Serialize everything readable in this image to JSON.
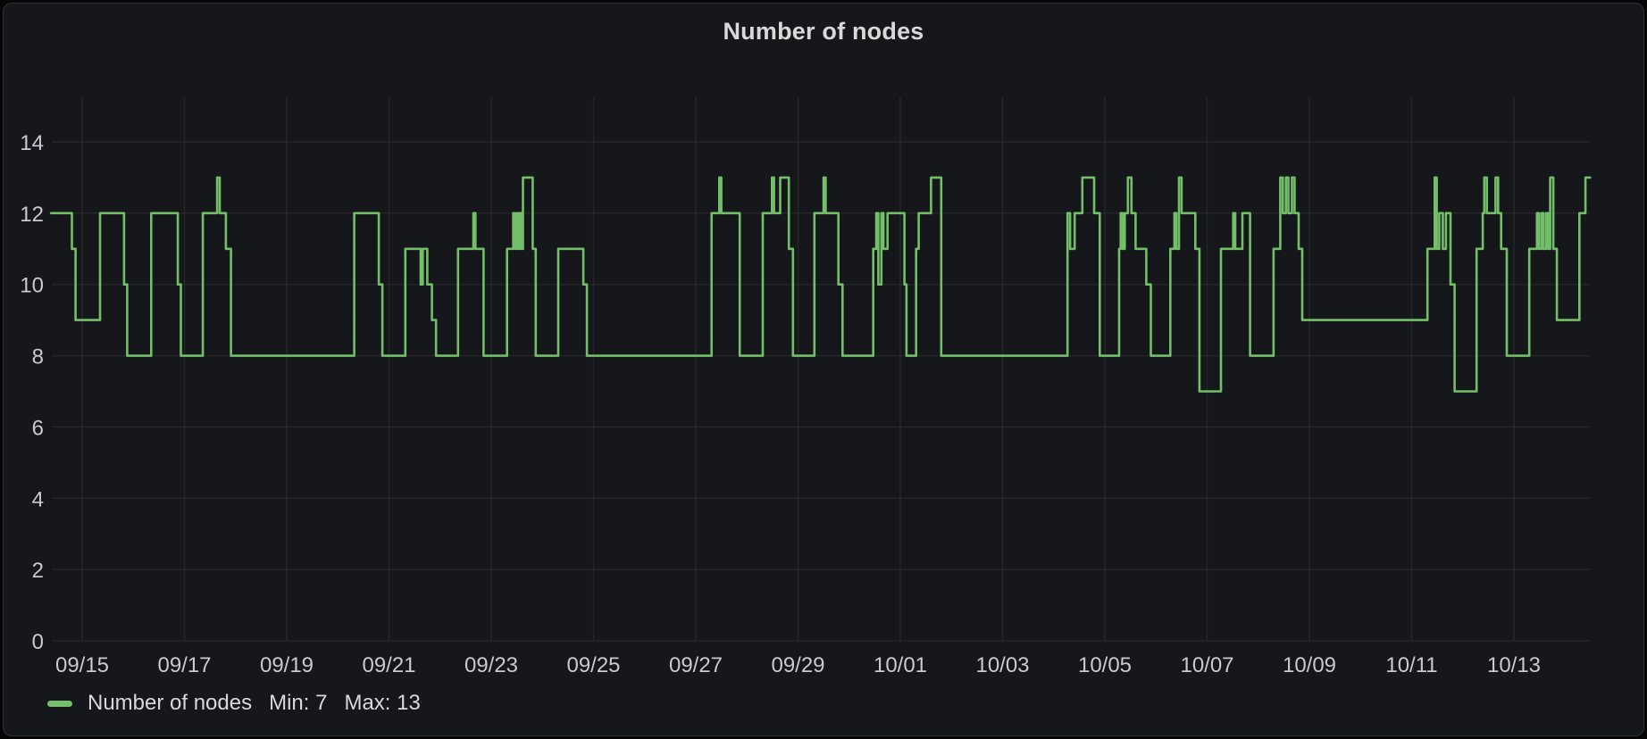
{
  "panel": {
    "title": "Number of nodes"
  },
  "legend": {
    "series_label": "Number of nodes",
    "min_label": "Min: 7",
    "max_label": "Max: 13",
    "marker_color": "#73BF69"
  },
  "colors": {
    "panel_background": "#16171B",
    "page_background": "#060607",
    "panel_border": "#2C2F36",
    "line_green": "#73BF69",
    "grid": "rgba(204,204,220,0.08)",
    "title_text": "#D8D9DA",
    "tick_text": "#C7CAD1"
  },
  "chart_data": {
    "type": "line",
    "interpolation": "step-after",
    "title": "Number of nodes",
    "xlabel": "",
    "ylabel": "",
    "grid": true,
    "legend_position": "bottom-left",
    "x_axis": {
      "epoch": "days since 09/15 00:00",
      "tick_days": [
        0,
        2,
        4,
        6,
        8,
        10,
        12,
        14,
        16,
        18,
        20,
        22,
        24,
        26,
        28
      ],
      "tick_labels": [
        "09/15",
        "09/17",
        "09/19",
        "09/21",
        "09/23",
        "09/25",
        "09/27",
        "09/29",
        "10/01",
        "10/03",
        "10/05",
        "10/07",
        "10/09",
        "10/11",
        "10/13"
      ],
      "range_days": [
        -0.61,
        29.49
      ]
    },
    "y_axis": {
      "ticks": [
        0,
        2,
        4,
        6,
        8,
        10,
        12,
        14
      ],
      "tick_labels": [
        "0",
        "2",
        "4",
        "6",
        "8",
        "10",
        "12",
        "14"
      ],
      "range": [
        0,
        15.25
      ]
    },
    "series": [
      {
        "name": "Number of nodes",
        "color": "#73BF69",
        "min": 7,
        "max": 13,
        "points": [
          [
            -0.61,
            12
          ],
          [
            -0.2,
            11
          ],
          [
            -0.13,
            9
          ],
          [
            0.35,
            12
          ],
          [
            0.82,
            10
          ],
          [
            0.88,
            8
          ],
          [
            1.35,
            12
          ],
          [
            1.87,
            10
          ],
          [
            1.93,
            8
          ],
          [
            2.36,
            12
          ],
          [
            2.64,
            13
          ],
          [
            2.69,
            12
          ],
          [
            2.81,
            11
          ],
          [
            2.91,
            8
          ],
          [
            5.32,
            12
          ],
          [
            5.8,
            10
          ],
          [
            5.87,
            8
          ],
          [
            6.32,
            11
          ],
          [
            6.62,
            10
          ],
          [
            6.66,
            11
          ],
          [
            6.75,
            10
          ],
          [
            6.84,
            9
          ],
          [
            6.92,
            8
          ],
          [
            7.35,
            11
          ],
          [
            7.65,
            12
          ],
          [
            7.69,
            11
          ],
          [
            7.85,
            8
          ],
          [
            8.31,
            11
          ],
          [
            8.43,
            12
          ],
          [
            8.46,
            11
          ],
          [
            8.5,
            12
          ],
          [
            8.53,
            11
          ],
          [
            8.56,
            12
          ],
          [
            8.6,
            11
          ],
          [
            8.62,
            13
          ],
          [
            8.81,
            11
          ],
          [
            8.87,
            8
          ],
          [
            9.31,
            11
          ],
          [
            9.8,
            10
          ],
          [
            9.87,
            8
          ],
          [
            12.31,
            12
          ],
          [
            12.46,
            13
          ],
          [
            12.5,
            12
          ],
          [
            12.86,
            8
          ],
          [
            13.31,
            12
          ],
          [
            13.49,
            13
          ],
          [
            13.53,
            12
          ],
          [
            13.65,
            13
          ],
          [
            13.82,
            11
          ],
          [
            13.9,
            8
          ],
          [
            14.32,
            12
          ],
          [
            14.5,
            13
          ],
          [
            14.54,
            12
          ],
          [
            14.79,
            10
          ],
          [
            14.87,
            8
          ],
          [
            15.47,
            11
          ],
          [
            15.53,
            12
          ],
          [
            15.57,
            10
          ],
          [
            15.63,
            12
          ],
          [
            15.67,
            11
          ],
          [
            15.75,
            12
          ],
          [
            16.08,
            10
          ],
          [
            16.12,
            8
          ],
          [
            16.31,
            11
          ],
          [
            16.36,
            12
          ],
          [
            16.6,
            13
          ],
          [
            16.8,
            8
          ],
          [
            19.27,
            12
          ],
          [
            19.32,
            11
          ],
          [
            19.41,
            12
          ],
          [
            19.56,
            13
          ],
          [
            19.79,
            12
          ],
          [
            19.9,
            8
          ],
          [
            20.28,
            11
          ],
          [
            20.31,
            12
          ],
          [
            20.35,
            11
          ],
          [
            20.39,
            12
          ],
          [
            20.45,
            13
          ],
          [
            20.52,
            12
          ],
          [
            20.6,
            11
          ],
          [
            20.81,
            10
          ],
          [
            20.9,
            8
          ],
          [
            21.28,
            11
          ],
          [
            21.36,
            12
          ],
          [
            21.4,
            11
          ],
          [
            21.45,
            13
          ],
          [
            21.5,
            12
          ],
          [
            21.77,
            11
          ],
          [
            21.85,
            7
          ],
          [
            22.27,
            11
          ],
          [
            22.51,
            12
          ],
          [
            22.55,
            11
          ],
          [
            22.69,
            12
          ],
          [
            22.84,
            8
          ],
          [
            23.3,
            11
          ],
          [
            23.43,
            13
          ],
          [
            23.48,
            12
          ],
          [
            23.54,
            13
          ],
          [
            23.59,
            12
          ],
          [
            23.66,
            13
          ],
          [
            23.71,
            12
          ],
          [
            23.79,
            11
          ],
          [
            23.86,
            9
          ],
          [
            26.31,
            11
          ],
          [
            26.45,
            13
          ],
          [
            26.49,
            11
          ],
          [
            26.54,
            12
          ],
          [
            26.61,
            11
          ],
          [
            26.67,
            12
          ],
          [
            26.76,
            10
          ],
          [
            26.84,
            7
          ],
          [
            27.27,
            11
          ],
          [
            27.39,
            12
          ],
          [
            27.42,
            13
          ],
          [
            27.47,
            12
          ],
          [
            27.64,
            13
          ],
          [
            27.69,
            12
          ],
          [
            27.75,
            11
          ],
          [
            27.86,
            8
          ],
          [
            28.3,
            11
          ],
          [
            28.45,
            12
          ],
          [
            28.49,
            11
          ],
          [
            28.54,
            12
          ],
          [
            28.58,
            11
          ],
          [
            28.63,
            12
          ],
          [
            28.67,
            11
          ],
          [
            28.71,
            13
          ],
          [
            28.77,
            11
          ],
          [
            28.84,
            9
          ],
          [
            29.28,
            12
          ],
          [
            29.4,
            13
          ],
          [
            29.49,
            13
          ]
        ]
      }
    ]
  }
}
